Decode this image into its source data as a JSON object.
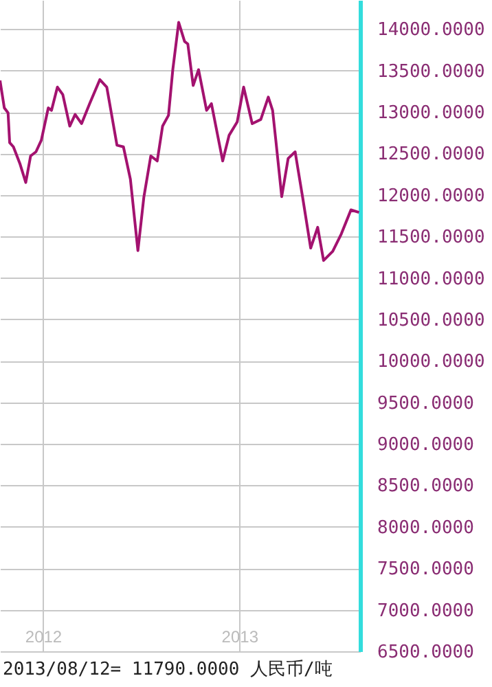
{
  "chart_data": {
    "type": "line",
    "x": [
      "2011-10-13",
      "2011-10-21",
      "2011-10-28",
      "2011-10-31",
      "2011-11-07",
      "2011-11-19",
      "2011-11-30",
      "2011-12-09",
      "2011-12-19",
      "2011-12-29",
      "2012-01-11",
      "2012-01-17",
      "2012-01-28",
      "2012-02-07",
      "2012-02-20",
      "2012-03-01",
      "2012-03-13",
      "2012-03-28",
      "2012-04-16",
      "2012-04-29",
      "2012-05-18",
      "2012-05-30",
      "2012-06-12",
      "2012-06-26",
      "2012-07-07",
      "2012-07-20",
      "2012-08-01",
      "2012-08-11",
      "2012-08-22",
      "2012-08-30",
      "2012-09-10",
      "2012-09-21",
      "2012-09-27",
      "2012-10-07",
      "2012-10-17",
      "2012-11-01",
      "2012-11-10",
      "2012-12-01",
      "2012-12-13",
      "2012-12-28",
      "2013-01-09",
      "2013-01-25",
      "2013-02-10",
      "2013-02-24",
      "2013-03-04",
      "2013-03-10",
      "2013-03-21",
      "2013-04-02",
      "2013-04-15",
      "2013-04-29",
      "2013-05-14",
      "2013-05-27",
      "2013-06-07",
      "2013-06-24",
      "2013-07-10",
      "2013-07-28",
      "2013-08-12"
    ],
    "series": [
      {
        "color": "#a3126f",
        "values": [
          13380,
          13050,
          12990,
          12630,
          12580,
          12380,
          12150,
          12470,
          12520,
          12660,
          13050,
          13020,
          13300,
          13210,
          12830,
          12970,
          12860,
          13100,
          13390,
          13300,
          12600,
          12580,
          12190,
          11330,
          11970,
          12470,
          12410,
          12830,
          12960,
          13510,
          14080,
          13850,
          13820,
          13320,
          13510,
          13020,
          13100,
          12410,
          12720,
          12880,
          13300,
          12860,
          12910,
          13180,
          13020,
          12660,
          11980,
          12440,
          12520,
          11970,
          11360,
          11610,
          11210,
          11320,
          11530,
          11820,
          11790
        ]
      }
    ],
    "xlim": [
      "2011-10-13",
      "2013-08-14"
    ],
    "xticks": [
      {
        "value": "2012-01-01",
        "label": "2012"
      },
      {
        "value": "2013-01-01",
        "label": "2013"
      }
    ],
    "ylim": [
      6500,
      14350
    ],
    "yticks": [
      {
        "value": 6500,
        "label": "6500.0000"
      },
      {
        "value": 7000,
        "label": "7000.0000"
      },
      {
        "value": 7500,
        "label": "7500.0000"
      },
      {
        "value": 8000,
        "label": "8000.0000"
      },
      {
        "value": 8500,
        "label": "8500.0000"
      },
      {
        "value": 9000,
        "label": "9000.0000"
      },
      {
        "value": 9500,
        "label": "9500.0000"
      },
      {
        "value": 10000,
        "label": "10000.0000"
      },
      {
        "value": 10500,
        "label": "10500.0000"
      },
      {
        "value": 11000,
        "label": "11000.0000"
      },
      {
        "value": 11500,
        "label": "11500.0000"
      },
      {
        "value": 12000,
        "label": "12000.0000"
      },
      {
        "value": 12500,
        "label": "12500.0000"
      },
      {
        "value": 13000,
        "label": "13000.0000"
      },
      {
        "value": 13500,
        "label": "13500.0000"
      },
      {
        "value": 14000,
        "label": "14000.0000"
      }
    ],
    "grid": true,
    "annotations": [
      "2013/08/12= 11790.0000 人民币/吨"
    ]
  }
}
